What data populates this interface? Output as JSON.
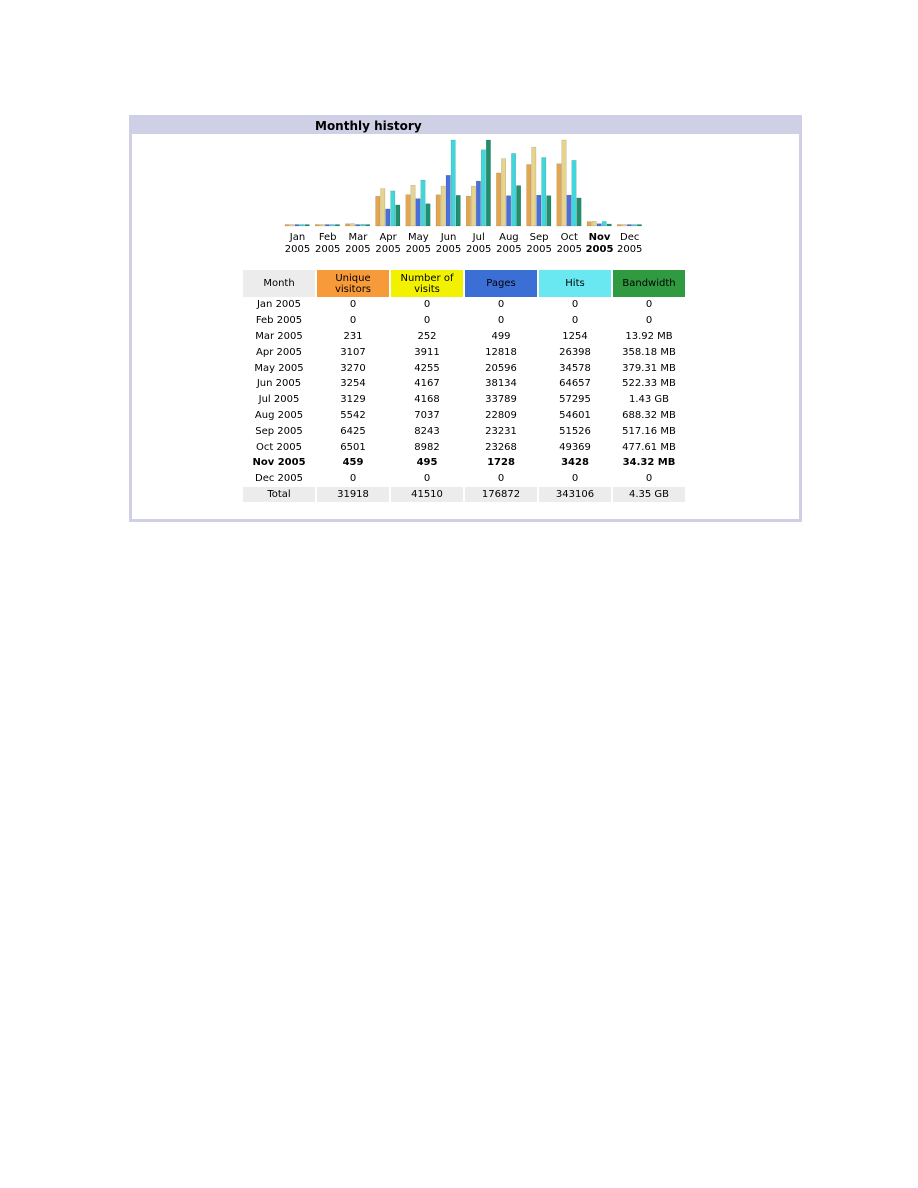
{
  "panel": {
    "title": "Monthly history"
  },
  "colors": {
    "unique_visitors": "#f3a33a",
    "number_of_visits": "#f2f200",
    "pages": "#3c6fd6",
    "hits": "#6ae8f2",
    "bandwidth": "#2f9a40",
    "header_bg": "#cfcfe5",
    "month_header_bg": "#ececec"
  },
  "chart_data": {
    "type": "bar",
    "categories": [
      [
        "Jan",
        "2005"
      ],
      [
        "Feb",
        "2005"
      ],
      [
        "Mar",
        "2005"
      ],
      [
        "Apr",
        "2005"
      ],
      [
        "May",
        "2005"
      ],
      [
        "Jun",
        "2005"
      ],
      [
        "Jul",
        "2005"
      ],
      [
        "Aug",
        "2005"
      ],
      [
        "Sep",
        "2005"
      ],
      [
        "Oct",
        "2005"
      ],
      [
        "Nov",
        "2005"
      ],
      [
        "Dec",
        "2005"
      ]
    ],
    "highlight_category_index": 10,
    "series": [
      {
        "key": "unique_visitors",
        "color": "#e3a64e",
        "values": [
          0,
          0,
          231,
          3107,
          3270,
          3254,
          3129,
          5542,
          6425,
          6501,
          459,
          0
        ]
      },
      {
        "key": "number_of_visits",
        "color": "#e6d38c",
        "values": [
          0,
          0,
          252,
          3911,
          4255,
          4167,
          4168,
          7037,
          8243,
          8982,
          495,
          0
        ]
      },
      {
        "key": "pages",
        "color": "#4a6fd8",
        "values": [
          0,
          0,
          499,
          12818,
          20596,
          38134,
          33789,
          22809,
          23231,
          23268,
          1728,
          0
        ]
      },
      {
        "key": "hits",
        "color": "#3fd6dc",
        "values": [
          0,
          0,
          1254,
          26398,
          34578,
          64657,
          57295,
          54601,
          51526,
          49369,
          3428,
          0
        ]
      },
      {
        "key": "bandwidth",
        "color": "#1f8f6e",
        "unit": "MB",
        "values": [
          0,
          0,
          13.92,
          358.18,
          379.31,
          522.33,
          1464.32,
          688.32,
          517.16,
          477.61,
          34.32,
          0
        ]
      }
    ],
    "grid": false,
    "legend": "none"
  },
  "table": {
    "headers": [
      "Month",
      "Unique visitors",
      "Number of visits",
      "Pages",
      "Hits",
      "Bandwidth"
    ],
    "header_colors": [
      "#ececec",
      "#f79a3a",
      "#f2f200",
      "#3c6fd6",
      "#6ae8f2",
      "#2f9a40"
    ],
    "rows": [
      [
        "Jan 2005",
        "0",
        "0",
        "0",
        "0",
        "0"
      ],
      [
        "Feb 2005",
        "0",
        "0",
        "0",
        "0",
        "0"
      ],
      [
        "Mar 2005",
        "231",
        "252",
        "499",
        "1254",
        "13.92 MB"
      ],
      [
        "Apr 2005",
        "3107",
        "3911",
        "12818",
        "26398",
        "358.18 MB"
      ],
      [
        "May 2005",
        "3270",
        "4255",
        "20596",
        "34578",
        "379.31 MB"
      ],
      [
        "Jun 2005",
        "3254",
        "4167",
        "38134",
        "64657",
        "522.33 MB"
      ],
      [
        "Jul 2005",
        "3129",
        "4168",
        "33789",
        "57295",
        "1.43 GB"
      ],
      [
        "Aug 2005",
        "5542",
        "7037",
        "22809",
        "54601",
        "688.32 MB"
      ],
      [
        "Sep 2005",
        "6425",
        "8243",
        "23231",
        "51526",
        "517.16 MB"
      ],
      [
        "Oct 2005",
        "6501",
        "8982",
        "23268",
        "49369",
        "477.61 MB"
      ],
      [
        "Nov 2005",
        "459",
        "495",
        "1728",
        "3428",
        "34.32 MB"
      ],
      [
        "Dec 2005",
        "0",
        "0",
        "0",
        "0",
        "0"
      ]
    ],
    "bold_row_index": 10,
    "total": [
      "Total",
      "31918",
      "41510",
      "176872",
      "343106",
      "4.35 GB"
    ]
  }
}
